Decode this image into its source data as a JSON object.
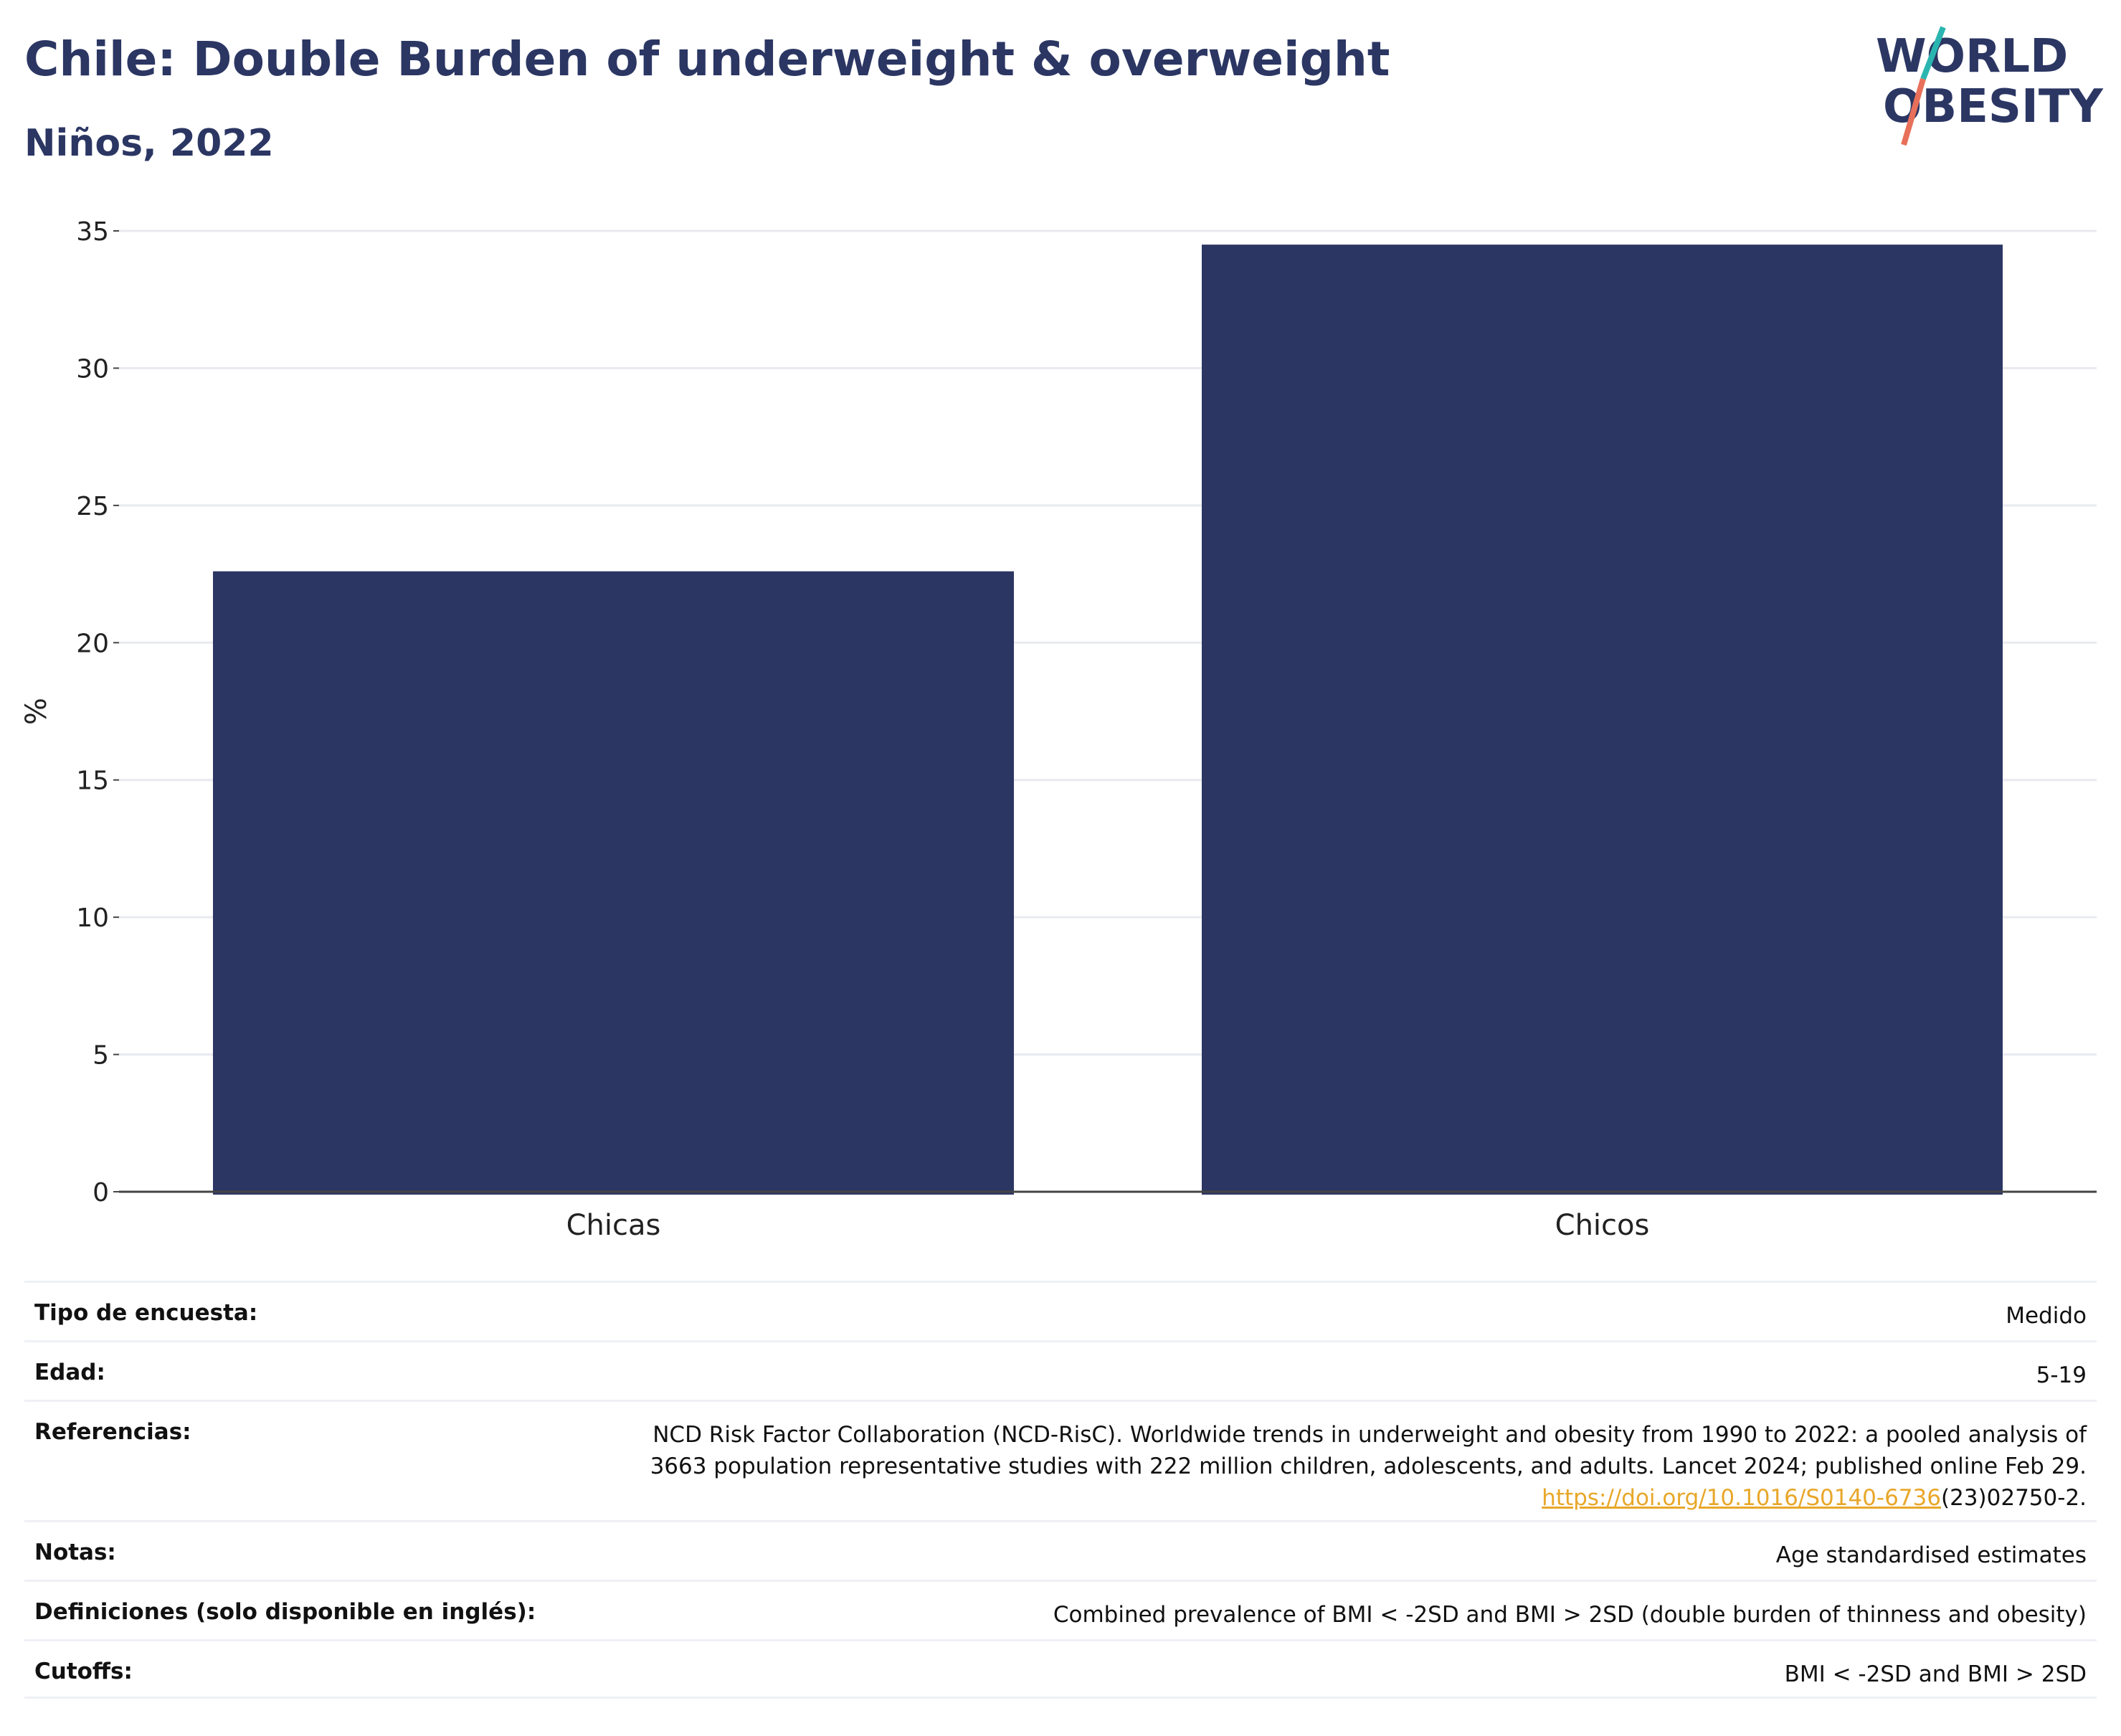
{
  "title": "Chile: Double Burden of underweight & overweight",
  "subtitle": "Niños, 2022",
  "logo": {
    "line1": "WORLD",
    "line2": "OBESITY",
    "colors": {
      "navy": "#2b3663",
      "teal": "#2bb5b0",
      "coral": "#e8705a"
    }
  },
  "colors": {
    "bar": "#2b3663",
    "grid": "#e8eaf0",
    "axis": "#444444",
    "link": "#e8a72a"
  },
  "chart_data": {
    "type": "bar",
    "categories": [
      "Chicas",
      "Chicos"
    ],
    "values": [
      22.6,
      34.5
    ],
    "ylabel": "%",
    "yticks": [
      0,
      5,
      10,
      15,
      20,
      25,
      30,
      35
    ],
    "ylim": [
      0,
      35
    ],
    "grid": true
  },
  "meta": {
    "survey_key": "Tipo de encuesta:",
    "survey_val": "Medido",
    "age_key": "Edad:",
    "age_val": "5-19",
    "ref_key": "Referencias:",
    "ref_line1": "NCD Risk Factor Collaboration (NCD-RisC). Worldwide trends in underweight and obesity from 1990 to 2022: a pooled analysis of",
    "ref_line2": "3663 population representative studies with 222 million children, adolescents, and adults. Lancet 2024; published online Feb 29.",
    "ref_link": "https://doi.org/10.1016/S0140-6736",
    "ref_tail": "(23)02750-2.",
    "notes_key": "Notas:",
    "notes_val": "Age standardised estimates",
    "def_key": "Definiciones (solo disponible en inglés):",
    "def_val": "Combined prevalence of BMI < -2SD and BMI > 2SD (double burden of thinness and obesity)",
    "cut_key": "Cutoffs:",
    "cut_val": "BMI < -2SD and BMI > 2SD"
  }
}
